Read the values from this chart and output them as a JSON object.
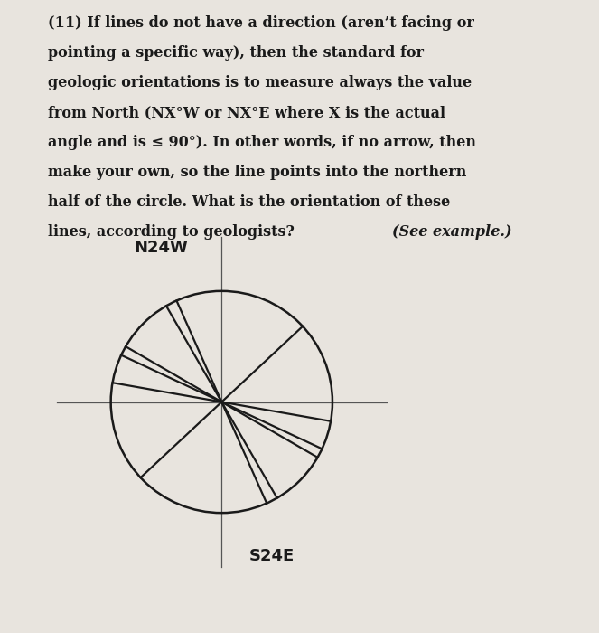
{
  "background_color": "#e8e4de",
  "text_color": "#1a1a1a",
  "paragraph_lines": [
    "(11) If lines do not have a direction (aren’t facing or",
    "pointing a specific way), then the standard for",
    "geologic orientations is to measure always the value",
    "from North (NX°W or NX°E where X is the actual",
    "angle and is ≤ 90°). In other words, if no arrow, then",
    "make your own, so the line points into the northern",
    "half of the circle. What is the orientation of these",
    "lines, according to geologists? (See example.)"
  ],
  "font_size_body": 11.5,
  "label_N24W": "N24W",
  "label_S24E": "S24E",
  "crosshair_color": "#555555",
  "line_color": "#1a1a1a",
  "circle_color": "#1a1a1a",
  "crosshair_lw": 0.9,
  "line_lw": 1.6,
  "circle_lw": 1.8,
  "line_bearings": [
    -24,
    47,
    -60,
    -80,
    115,
    150
  ],
  "figsize": [
    6.63,
    7.0
  ],
  "dpi": 100
}
